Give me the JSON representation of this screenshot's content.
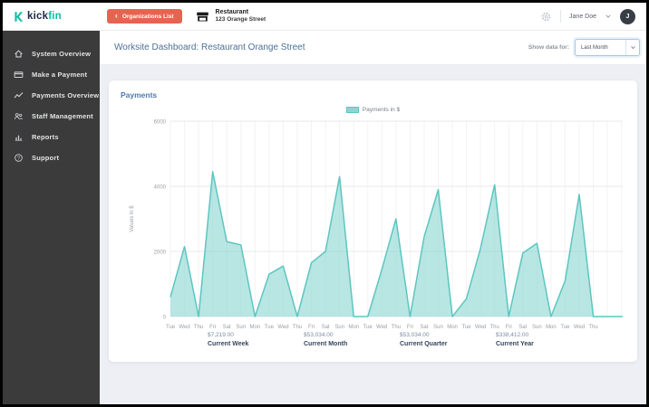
{
  "brand": {
    "logo_dark": "kick",
    "logo_accent": "fin",
    "accent_color": "#0abfa3"
  },
  "topbar": {
    "organizations_button_label": "Organizations List",
    "venue": {
      "name": "Restaurant",
      "address": "123 Orange Street"
    },
    "user": {
      "name": "Jane Doe",
      "avatar_initial": "J"
    }
  },
  "sidebar": {
    "items": [
      {
        "label": "System Overview",
        "icon": "home"
      },
      {
        "label": "Make a Payment",
        "icon": "credit-card"
      },
      {
        "label": "Payments Overview",
        "icon": "trend"
      },
      {
        "label": "Staff Management",
        "icon": "users"
      },
      {
        "label": "Reports",
        "icon": "bar-chart"
      },
      {
        "label": "Support",
        "icon": "help"
      }
    ]
  },
  "header": {
    "title": "Worksite Dashboard: Restaurant Orange Street",
    "filter_label": "Show data for:",
    "filter_value": "Last Month"
  },
  "chart_data": {
    "type": "area",
    "title": "Payments",
    "legend": "Payments in $",
    "ylabel": "Values in $",
    "ylim": [
      0,
      6000
    ],
    "ytick_step": 2000,
    "grid": true,
    "legend_position": "top",
    "line_color": "#5cc6c0",
    "fill_color": "rgba(140,214,210,0.62)",
    "categories": [
      "Tue",
      "Wed",
      "Thu",
      "Fri",
      "Sat",
      "Sun",
      "Mon",
      "Tue",
      "Wed",
      "Thu",
      "Fri",
      "Sat",
      "Sun",
      "Mon",
      "Tue",
      "Wed",
      "Thu",
      "Fri",
      "Sat",
      "Sun",
      "Mon",
      "Tue",
      "Wed",
      "Thu",
      "Fri",
      "Sat",
      "Sun",
      "Mon",
      "Tue",
      "Wed",
      "Thu"
    ],
    "values": [
      600,
      2150,
      0,
      4450,
      2300,
      2200,
      0,
      1300,
      1550,
      0,
      1650,
      2000,
      4300,
      0,
      0,
      1450,
      3000,
      0,
      2450,
      3900,
      0,
      550,
      2100,
      4050,
      0,
      1950,
      2250,
      0,
      1100,
      3750,
      0
    ]
  },
  "stats": {
    "items": [
      {
        "amount": "$7,219.00",
        "label": "Current Week"
      },
      {
        "amount": "$53,034.00",
        "label": "Current Month"
      },
      {
        "amount": "$53,034.00",
        "label": "Current Quarter"
      },
      {
        "amount": "$338,412.00",
        "label": "Current Year"
      }
    ]
  }
}
